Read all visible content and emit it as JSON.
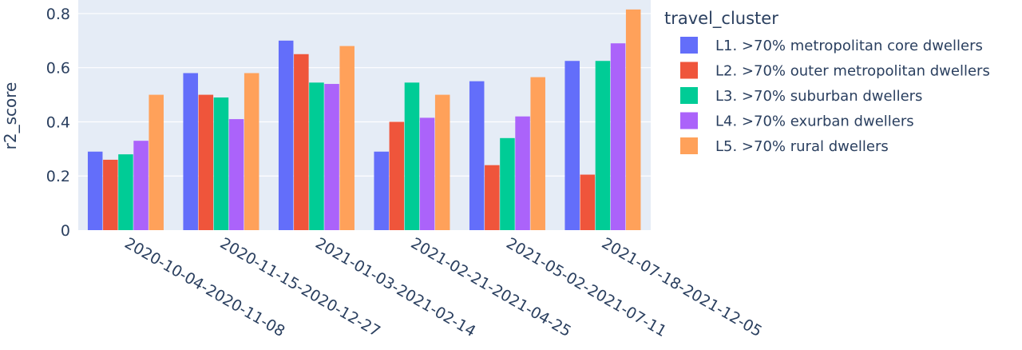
{
  "chart_data": {
    "type": "bar",
    "barmode": "group",
    "ylabel": "r2_score",
    "xlabel": "",
    "ylim": [
      0,
      0.85
    ],
    "yticks": [
      0,
      0.2,
      0.4,
      0.6,
      0.8
    ],
    "ytick_labels": [
      "0",
      "0.2",
      "0.4",
      "0.6",
      "0.8"
    ],
    "grid": true,
    "background": "#e5ecf6",
    "legend": {
      "title": "travel_cluster",
      "placement": "right"
    },
    "categories": [
      "2020-10-04-2020-11-08",
      "2020-11-15-2020-12-27",
      "2021-01-03-2021-02-14",
      "2021-02-21-2021-04-25",
      "2021-05-02-2021-07-11",
      "2021-07-18-2021-12-05"
    ],
    "series": [
      {
        "name": "L1. >70% metropolitan core dwellers",
        "color": "#636efa",
        "values": [
          0.29,
          0.58,
          0.7,
          0.29,
          0.55,
          0.625
        ]
      },
      {
        "name": "L2. >70% outer metropolitan dwellers",
        "color": "#ef553b",
        "values": [
          0.26,
          0.5,
          0.65,
          0.4,
          0.24,
          0.205
        ]
      },
      {
        "name": "L3. >70% suburban dwellers",
        "color": "#00cc96",
        "values": [
          0.28,
          0.49,
          0.545,
          0.545,
          0.34,
          0.625
        ]
      },
      {
        "name": "L4. >70% exurban dwellers",
        "color": "#ab63fa",
        "values": [
          0.33,
          0.41,
          0.54,
          0.415,
          0.42,
          0.69
        ]
      },
      {
        "name": "L5. >70% rural dwellers",
        "color": "#ffa15a",
        "values": [
          0.5,
          0.58,
          0.68,
          0.5,
          0.565,
          0.815
        ]
      }
    ]
  }
}
